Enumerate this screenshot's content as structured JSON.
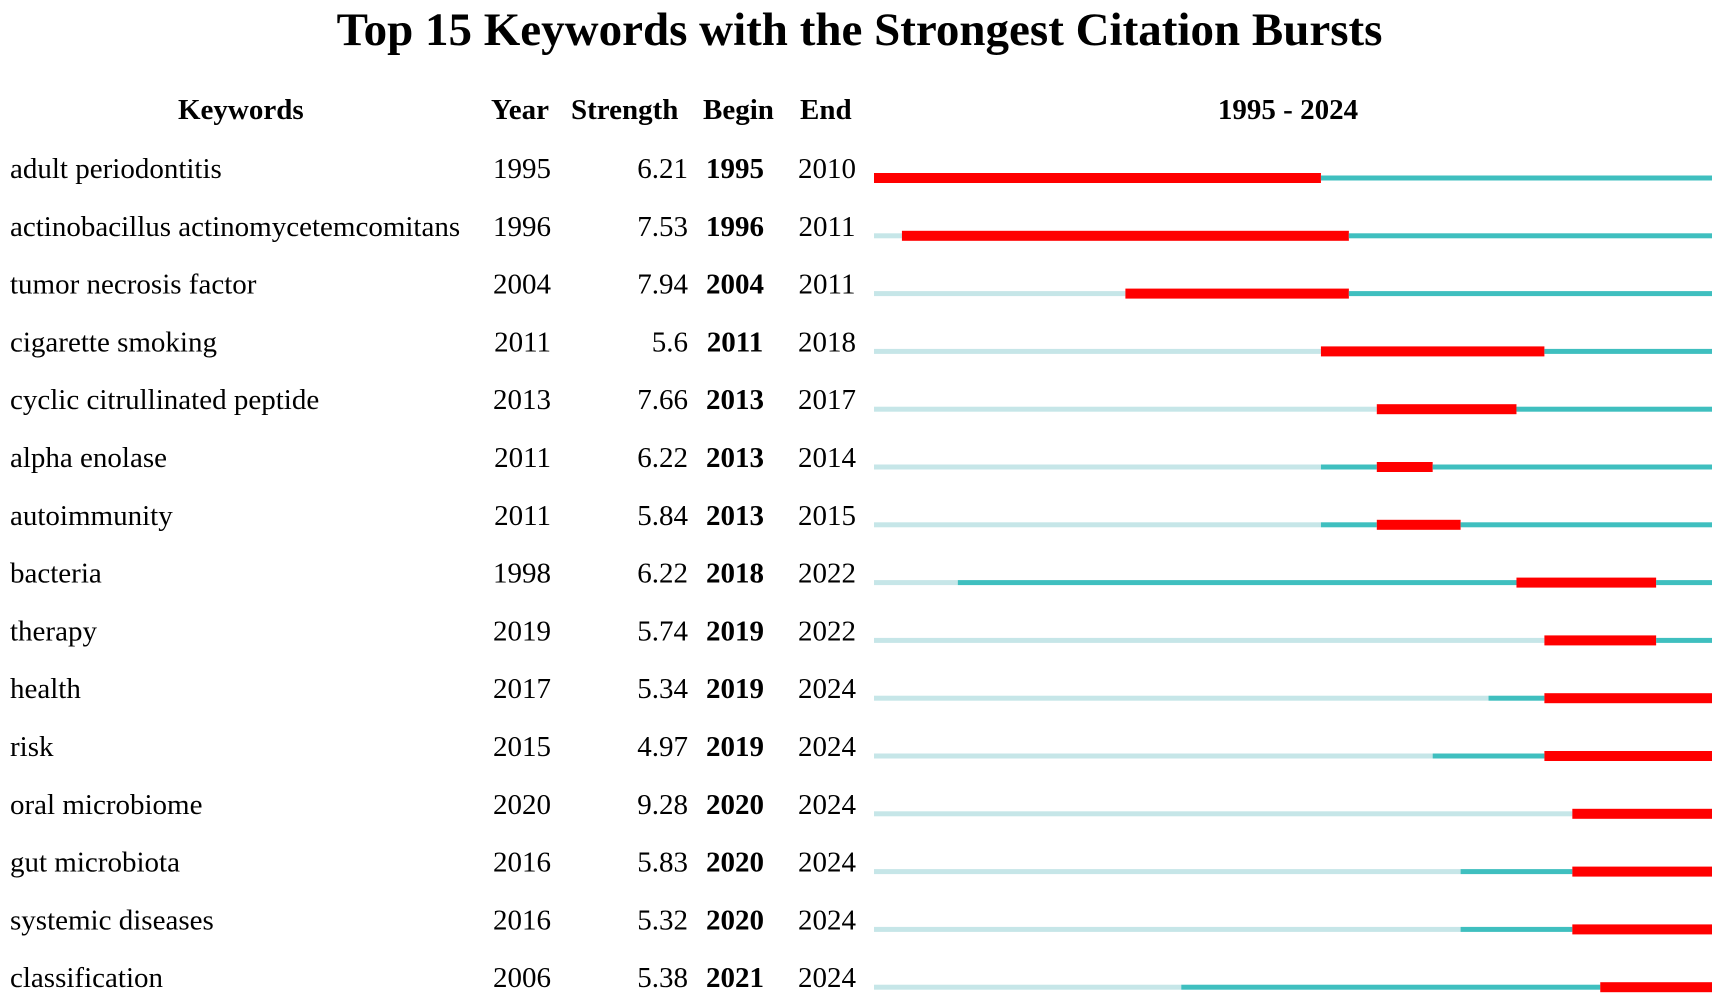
{
  "chart_data": {
    "type": "table",
    "title": "Top 15 Keywords with the Strongest Citation Bursts",
    "headers": {
      "keyword": "Keywords",
      "year": "Year",
      "strength": "Strength",
      "begin": "Begin",
      "end": "End",
      "range": "1995 - 2024"
    },
    "timeline_start": 1995,
    "timeline_end": 2024,
    "colors": {
      "burst": "#ff0000",
      "active": "#3fbfbf",
      "inactive": "#c6e6e8"
    },
    "rows": [
      {
        "keyword": "adult periodontitis",
        "year": "1995",
        "strength": "6.21",
        "begin": "1995",
        "end": "2010"
      },
      {
        "keyword": "actinobacillus actinomycetemcomitans",
        "year": "1996",
        "strength": "7.53",
        "begin": "1996",
        "end": "2011"
      },
      {
        "keyword": "tumor necrosis factor",
        "year": "2004",
        "strength": "7.94",
        "begin": "2004",
        "end": "2011"
      },
      {
        "keyword": "cigarette smoking",
        "year": "2011",
        "strength": "5.6",
        "begin": "2011",
        "end": "2018"
      },
      {
        "keyword": "cyclic citrullinated peptide",
        "year": "2013",
        "strength": "7.66",
        "begin": "2013",
        "end": "2017"
      },
      {
        "keyword": "alpha enolase",
        "year": "2011",
        "strength": "6.22",
        "begin": "2013",
        "end": "2014"
      },
      {
        "keyword": "autoimmunity",
        "year": "2011",
        "strength": "5.84",
        "begin": "2013",
        "end": "2015"
      },
      {
        "keyword": "bacteria",
        "year": "1998",
        "strength": "6.22",
        "begin": "2018",
        "end": "2022"
      },
      {
        "keyword": "therapy",
        "year": "2019",
        "strength": "5.74",
        "begin": "2019",
        "end": "2022"
      },
      {
        "keyword": "health",
        "year": "2017",
        "strength": "5.34",
        "begin": "2019",
        "end": "2024"
      },
      {
        "keyword": "risk",
        "year": "2015",
        "strength": "4.97",
        "begin": "2019",
        "end": "2024"
      },
      {
        "keyword": "oral microbiome",
        "year": "2020",
        "strength": "9.28",
        "begin": "2020",
        "end": "2024"
      },
      {
        "keyword": "gut microbiota",
        "year": "2016",
        "strength": "5.83",
        "begin": "2020",
        "end": "2024"
      },
      {
        "keyword": "systemic diseases",
        "year": "2016",
        "strength": "5.32",
        "begin": "2020",
        "end": "2024"
      },
      {
        "keyword": "classification",
        "year": "2006",
        "strength": "5.38",
        "begin": "2021",
        "end": "2024"
      }
    ]
  }
}
